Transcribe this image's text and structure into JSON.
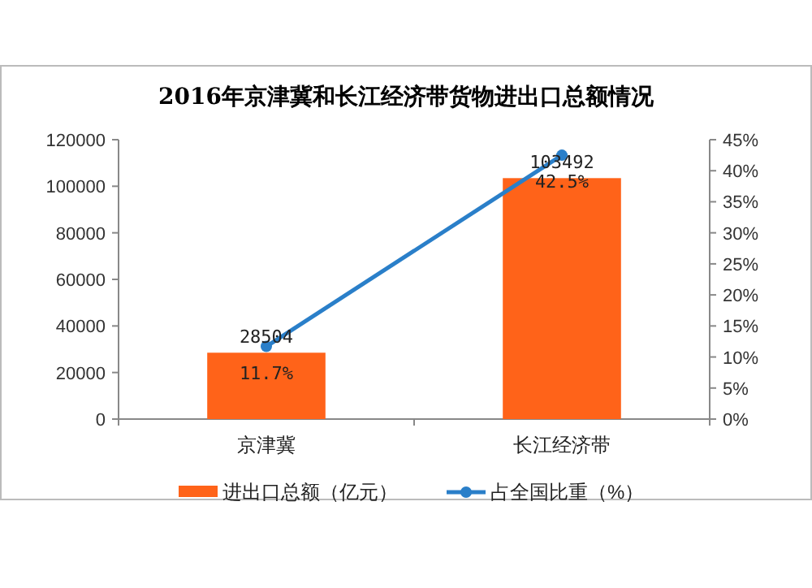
{
  "chart_data": {
    "type": "bar",
    "title": "2016年京津冀和长江经济带货物进出口总额情况",
    "categories": [
      "京津冀",
      "长江经济带"
    ],
    "series": [
      {
        "name": "进出口总额（亿元）",
        "color": "#ff6319",
        "values": [
          28504,
          103492
        ]
      },
      {
        "name": "占全国比重（%）",
        "type": "line",
        "axis": "y2",
        "color": "#2a7fc9",
        "values": [
          11.7,
          42.5
        ],
        "value_labels": [
          "11.7%",
          "42.5%"
        ],
        "marker": "circle"
      }
    ],
    "ylim": [
      0,
      120000
    ],
    "yticks": [
      0,
      20000,
      40000,
      60000,
      80000,
      100000,
      120000
    ],
    "y2lim": [
      0,
      45
    ],
    "y2ticks": [
      {
        "value": 0,
        "label": "0%"
      },
      {
        "value": 5,
        "label": "5%"
      },
      {
        "value": 10,
        "label": "10%"
      },
      {
        "value": 15,
        "label": "15%"
      },
      {
        "value": 20,
        "label": "20%"
      },
      {
        "value": 25,
        "label": "25%"
      },
      {
        "value": 30,
        "label": "30%"
      },
      {
        "value": 35,
        "label": "35%"
      },
      {
        "value": 40,
        "label": "40%"
      },
      {
        "value": 45,
        "label": "45%"
      }
    ],
    "data_labels": true,
    "legend": "bottom",
    "grid": false
  }
}
